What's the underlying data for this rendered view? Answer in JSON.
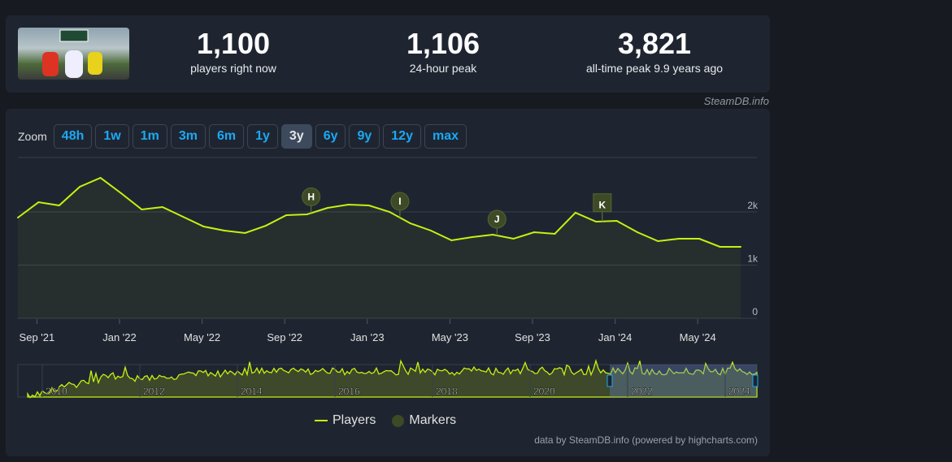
{
  "stats": {
    "current": "1,100",
    "current_label": "players right now",
    "peak24": "1,106",
    "peak24_label": "24-hour peak",
    "alltime": "3,821",
    "alltime_label": "all-time peak 9.9 years ago"
  },
  "credit": "SteamDB.info",
  "zoom": {
    "label": "Zoom",
    "buttons": [
      "48h",
      "1w",
      "1m",
      "3m",
      "6m",
      "1y",
      "3y",
      "6y",
      "9y",
      "12y",
      "max"
    ],
    "active": "3y"
  },
  "legend": {
    "players": "Players",
    "markers": "Markers"
  },
  "footer": "data by SteamDB.info (powered by highcharts.com)",
  "chart_data": {
    "type": "line",
    "series": [
      {
        "name": "Players",
        "color": "#c7f012",
        "values": [
          1893,
          2183,
          2122,
          2473,
          2641,
          2351,
          2046,
          2092,
          1908,
          1725,
          1649,
          1603,
          1740,
          1939,
          1954,
          2076,
          2137,
          2122,
          2000,
          1786,
          1649,
          1466,
          1527,
          1573,
          1496,
          1618,
          1588,
          1985,
          1817,
          1832,
          1618,
          1450,
          1496,
          1496,
          1344,
          1344
        ]
      }
    ],
    "x_start": "Aug 2021",
    "x_step": "month",
    "x_ticks": [
      {
        "label": "Sep '21",
        "i": 1
      },
      {
        "label": "Jan '22",
        "i": 5
      },
      {
        "label": "May '22",
        "i": 9
      },
      {
        "label": "Sep '22",
        "i": 13
      },
      {
        "label": "Jan '23",
        "i": 17
      },
      {
        "label": "May '23",
        "i": 21
      },
      {
        "label": "Sep '23",
        "i": 25
      },
      {
        "label": "Jan '24",
        "i": 29
      },
      {
        "label": "May '24",
        "i": 33
      }
    ],
    "y_ticks": [
      "0",
      "1k",
      "2k"
    ],
    "ylim": [
      0,
      3000
    ],
    "markers": [
      {
        "label": "H",
        "i": 14.2,
        "shape": "circle"
      },
      {
        "label": "I",
        "i": 18.5,
        "shape": "circle"
      },
      {
        "label": "J",
        "i": 23.2,
        "shape": "circle"
      },
      {
        "label": "K",
        "i": 28.3,
        "shape": "flag"
      }
    ],
    "navigator_years": [
      "2010",
      "2012",
      "2014",
      "2016",
      "2018",
      "2020",
      "2022",
      "2024"
    ]
  }
}
